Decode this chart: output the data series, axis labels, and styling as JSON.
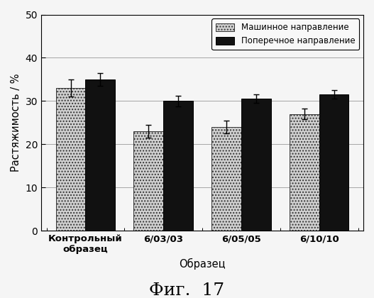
{
  "categories": [
    "Контрольный\nобразец",
    "6/03/03",
    "6/05/05",
    "6/10/10"
  ],
  "machine_values": [
    33.0,
    23.0,
    24.0,
    27.0
  ],
  "machine_errors": [
    2.0,
    1.5,
    1.5,
    1.2
  ],
  "cross_values": [
    35.0,
    30.0,
    30.5,
    31.5
  ],
  "cross_errors": [
    1.5,
    1.2,
    1.0,
    1.0
  ],
  "ylabel": "Растяжимость / %",
  "xlabel": "Образец",
  "title_fig": "Фиг.  17",
  "legend_machine": "Машинное направление",
  "legend_cross": "Поперечное направление",
  "ylim": [
    0,
    50
  ],
  "yticks": [
    0,
    10,
    20,
    30,
    40,
    50
  ],
  "bar_width": 0.38,
  "machine_color": "#d0d0d0",
  "cross_color": "#111111",
  "background_color": "#f5f5f5",
  "grid_color": "#999999"
}
